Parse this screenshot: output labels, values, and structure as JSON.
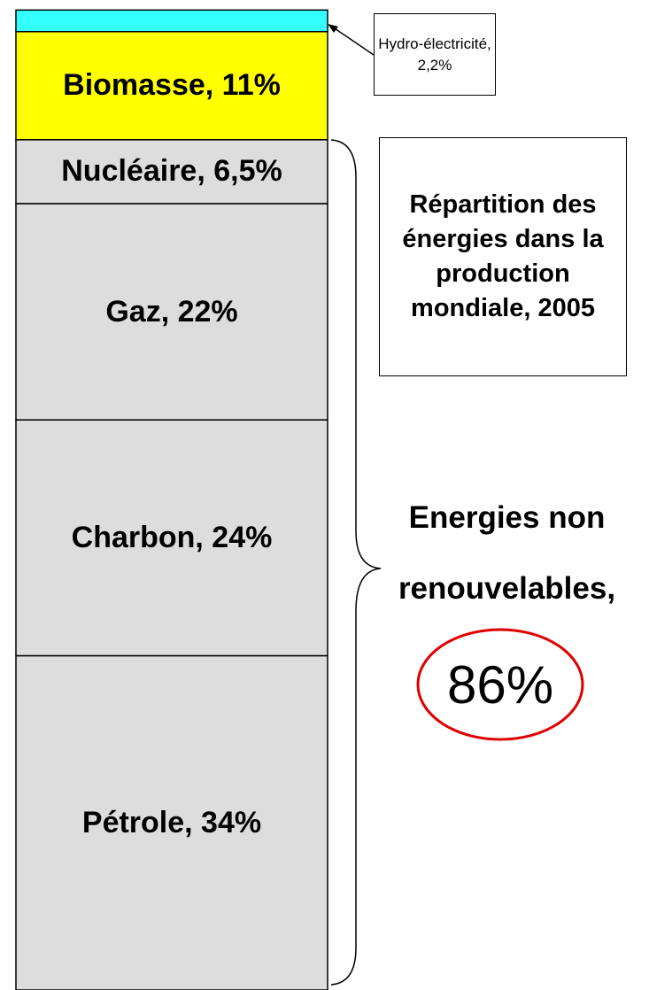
{
  "chart_data": {
    "type": "stacked_bar",
    "title": "Répartition des énergies dans la production mondiale, 2005",
    "ylim": [
      0,
      100
    ],
    "series": [
      {
        "color": "#dddddd",
        "values": [
          34
        ],
        "value_labels": [
          "Pétrole, 34%"
        ]
      },
      {
        "color": "#dddddd",
        "values": [
          24
        ],
        "value_labels": [
          "Charbon, 24%"
        ]
      },
      {
        "color": "#dddddd",
        "values": [
          22
        ],
        "value_labels": [
          "Gaz, 22%"
        ]
      },
      {
        "color": "#dddddd",
        "values": [
          6.5
        ],
        "value_labels": [
          "Nucléaire, 6,5%"
        ]
      },
      {
        "color": "#ffff00",
        "values": [
          11
        ],
        "value_labels": [
          "Biomasse, 11%"
        ]
      },
      {
        "color": "#33ffff",
        "values": [
          2.2
        ],
        "value_labels": [
          "Hydro-électricité, 2,2%"
        ]
      }
    ],
    "bracket": {
      "label": "Energies non renouvelables,",
      "value": 86,
      "value_label": "86%"
    }
  }
}
